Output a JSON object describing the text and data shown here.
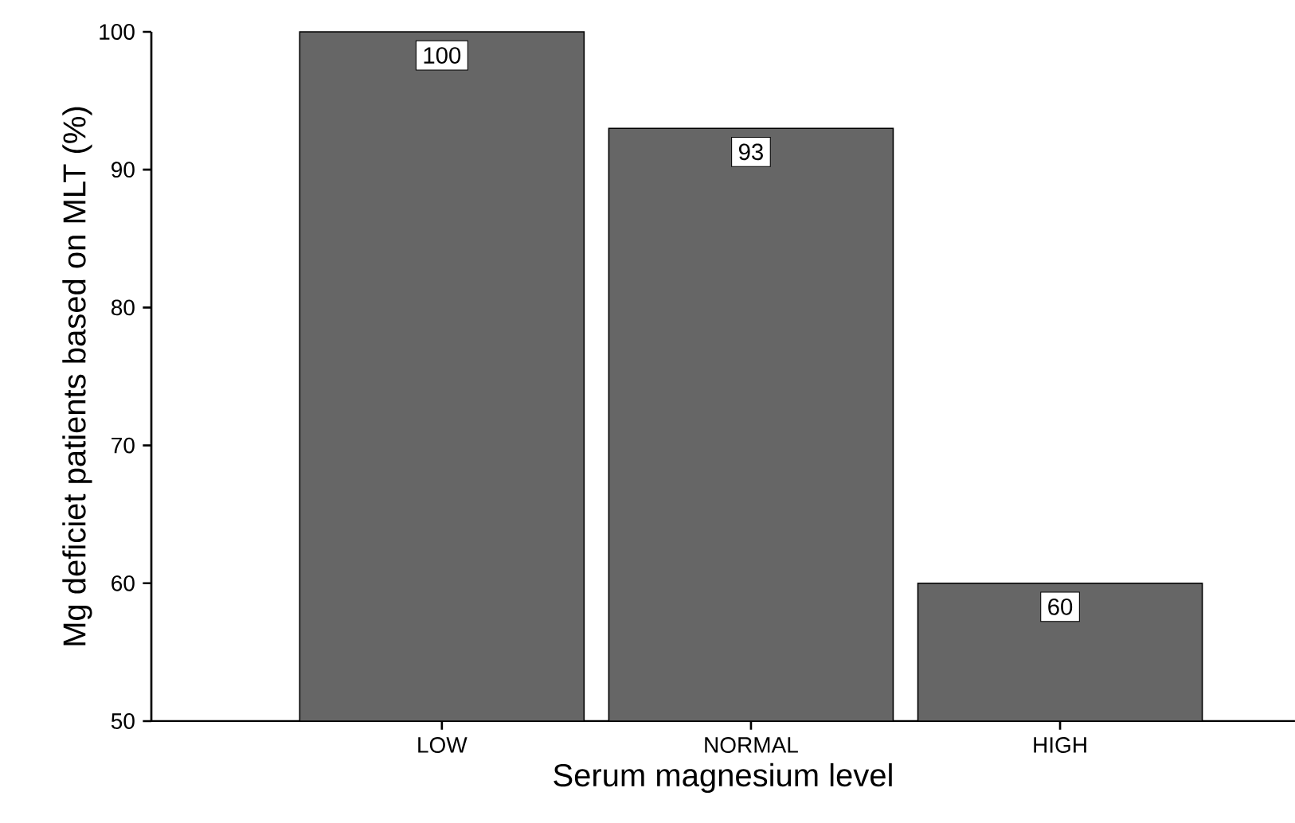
{
  "chart_data": {
    "type": "bar",
    "xlabel": "Serum magnesium level",
    "ylabel": "Mg deficiet patients based on MLT (%)",
    "categories": [
      "LOW",
      "NORMAL",
      "HIGH"
    ],
    "values": [
      100,
      93,
      60
    ],
    "color": "#666666",
    "ylim": [
      50,
      100
    ],
    "yticks": [
      50,
      60,
      70,
      80,
      90,
      100
    ],
    "data_labels": true
  }
}
